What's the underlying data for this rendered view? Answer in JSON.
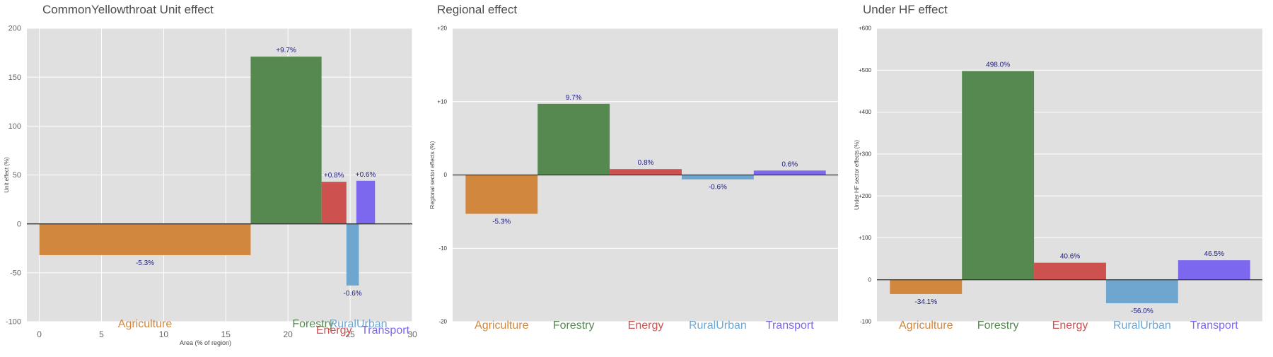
{
  "chart_data": [
    {
      "type": "bar",
      "title": "CommonYellowthroat Unit effect",
      "xlabel": "Area (% of region)",
      "ylabel": "Unit effect (%)",
      "xlim": [
        -1,
        30
      ],
      "ylim": [
        -100,
        200
      ],
      "x_ticks": [
        0,
        5,
        10,
        15,
        20,
        25,
        30
      ],
      "y_ticks": [
        -100,
        -50,
        0,
        50,
        100,
        150,
        200
      ],
      "grid": true,
      "categories": [
        "Agriculture",
        "Forestry",
        "Energy",
        "RuralUrban",
        "Transport"
      ],
      "x_start": [
        0,
        17,
        22.7,
        24.7,
        25.5
      ],
      "x_end": [
        17,
        22.7,
        24.7,
        25.7,
        27
      ],
      "values": [
        -32,
        171,
        43,
        -63,
        44
      ],
      "labels": [
        "-5.3%",
        "+9.7%",
        "+0.8%",
        "-0.6%",
        "+0.6%"
      ],
      "colors": [
        "#d2873e",
        "#55894f",
        "#cc514f",
        "#6fa6cf",
        "#7b68ee"
      ]
    },
    {
      "type": "bar",
      "title": "Regional effect",
      "xlabel": "",
      "ylabel": "Regional sector effects (%)",
      "ylim": [
        -20,
        20
      ],
      "y_ticks": [
        -20,
        -10,
        0,
        10,
        20
      ],
      "y_tick_labels": [
        "-20",
        "-10",
        "0",
        "+10",
        "+20"
      ],
      "grid": true,
      "categories": [
        "Agriculture",
        "Forestry",
        "Energy",
        "RuralUrban",
        "Transport"
      ],
      "values": [
        -5.3,
        9.7,
        0.8,
        -0.6,
        0.6
      ],
      "labels": [
        "-5.3%",
        "9.7%",
        "0.8%",
        "-0.6%",
        "0.6%"
      ],
      "colors": [
        "#d2873e",
        "#55894f",
        "#cc514f",
        "#6fa6cf",
        "#7b68ee"
      ]
    },
    {
      "type": "bar",
      "title": "Under HF effect",
      "xlabel": "",
      "ylabel": "Under HF sector effects (%)",
      "ylim": [
        -100,
        600
      ],
      "y_ticks": [
        -100,
        0,
        100,
        200,
        300,
        400,
        500,
        600
      ],
      "y_tick_labels": [
        "-100",
        "0",
        "+100",
        "+200",
        "+300",
        "+400",
        "+500",
        "+600"
      ],
      "grid": true,
      "categories": [
        "Agriculture",
        "Forestry",
        "Energy",
        "RuralUrban",
        "Transport"
      ],
      "values": [
        -34.1,
        498.0,
        40.6,
        -56.0,
        46.5
      ],
      "labels": [
        "-34.1%",
        "498.0%",
        "40.6%",
        "-56.0%",
        "46.5%"
      ],
      "colors": [
        "#d2873e",
        "#55894f",
        "#cc514f",
        "#6fa6cf",
        "#7b68ee"
      ]
    }
  ]
}
